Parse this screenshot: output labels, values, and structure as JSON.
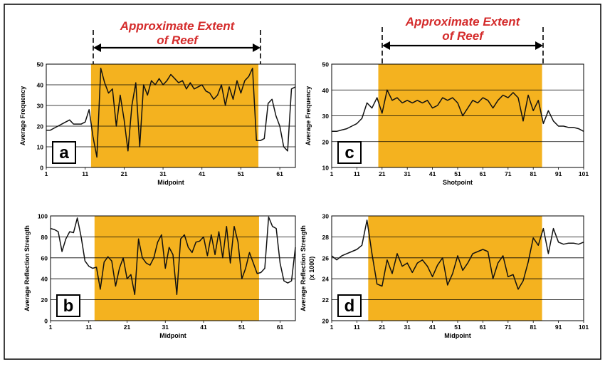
{
  "annotations": {
    "left": {
      "line1": "Approximate Extent",
      "line2": "of Reef"
    },
    "right": {
      "line1": "Approximate Extent",
      "line2": "of Reef"
    }
  },
  "colors": {
    "reef": "#f4b21f",
    "annotation": "#d42b2b",
    "line": "#111111",
    "frame": "#000000"
  },
  "chart_data": [
    {
      "id": "a",
      "type": "line",
      "panel_label": "a",
      "xlabel": "Midpoint",
      "ylabel": "Average Frequency",
      "xlim": [
        1,
        65
      ],
      "ylim": [
        0,
        50
      ],
      "xticks": [
        1,
        11,
        21,
        31,
        41,
        51,
        61
      ],
      "yticks": [
        0,
        10,
        20,
        30,
        40,
        50
      ],
      "reef_extent": [
        12.5,
        55.5
      ],
      "x": [
        1,
        2,
        3,
        4,
        5,
        6,
        7,
        8,
        9,
        10,
        11,
        12,
        13,
        14,
        15,
        16,
        17,
        18,
        19,
        20,
        21,
        22,
        23,
        24,
        25,
        26,
        27,
        28,
        29,
        30,
        31,
        32,
        33,
        34,
        35,
        36,
        37,
        38,
        39,
        40,
        41,
        42,
        43,
        44,
        45,
        46,
        47,
        48,
        49,
        50,
        51,
        52,
        53,
        54,
        55,
        56,
        57,
        58,
        59,
        60,
        61,
        62,
        63,
        64,
        65
      ],
      "y": [
        18,
        18,
        19,
        20,
        21,
        22,
        23,
        21,
        21,
        21,
        22,
        28,
        15,
        5,
        48,
        41,
        36,
        38,
        20,
        35,
        23,
        8,
        30,
        41,
        10,
        40,
        35,
        42,
        40,
        43,
        40,
        42,
        45,
        43,
        41,
        42,
        38,
        41,
        38,
        39,
        40,
        37,
        36,
        33,
        35,
        40,
        30,
        39,
        33,
        42,
        36,
        42,
        44,
        48,
        13,
        13,
        14,
        31,
        33,
        25,
        20,
        10,
        8,
        38,
        39
      ]
    },
    {
      "id": "b",
      "type": "line",
      "panel_label": "b",
      "xlabel": "Midpoint",
      "ylabel": "Average Reflection Strength",
      "xlim": [
        1,
        65
      ],
      "ylim": [
        0,
        100
      ],
      "xticks": [
        1,
        11,
        21,
        31,
        41,
        51,
        61
      ],
      "yticks": [
        0,
        20,
        40,
        60,
        80,
        100
      ],
      "reef_extent": [
        12.5,
        55.5
      ],
      "x": [
        1,
        2,
        3,
        4,
        5,
        6,
        7,
        8,
        9,
        10,
        11,
        12,
        13,
        14,
        15,
        16,
        17,
        18,
        19,
        20,
        21,
        22,
        23,
        24,
        25,
        26,
        27,
        28,
        29,
        30,
        31,
        32,
        33,
        34,
        35,
        36,
        37,
        38,
        39,
        40,
        41,
        42,
        43,
        44,
        45,
        46,
        47,
        48,
        49,
        50,
        51,
        52,
        53,
        54,
        55,
        56,
        57,
        58,
        59,
        60,
        61,
        62,
        63,
        64,
        65
      ],
      "y": [
        88,
        87,
        85,
        66,
        78,
        85,
        84,
        98,
        80,
        57,
        52,
        50,
        51,
        30,
        56,
        61,
        57,
        33,
        50,
        60,
        40,
        44,
        25,
        78,
        60,
        55,
        53,
        60,
        75,
        82,
        50,
        70,
        63,
        25,
        78,
        82,
        70,
        65,
        75,
        76,
        80,
        62,
        82,
        63,
        85,
        60,
        90,
        55,
        90,
        75,
        40,
        50,
        65,
        55,
        45,
        46,
        50,
        99,
        90,
        88,
        55,
        38,
        36,
        38,
        70
      ]
    },
    {
      "id": "c",
      "type": "line",
      "panel_label": "c",
      "xlabel": "Shotpoint",
      "ylabel": "Average Frequency",
      "xlim": [
        1,
        101
      ],
      "ylim": [
        10,
        50
      ],
      "xticks": [
        1,
        11,
        21,
        31,
        41,
        51,
        61,
        71,
        81,
        91,
        101
      ],
      "yticks": [
        10,
        20,
        30,
        40,
        50
      ],
      "reef_extent": [
        19.5,
        84.5
      ],
      "x": [
        1,
        3,
        5,
        7,
        9,
        11,
        13,
        15,
        17,
        19,
        21,
        23,
        25,
        27,
        29,
        31,
        33,
        35,
        37,
        39,
        41,
        43,
        45,
        47,
        49,
        51,
        53,
        55,
        57,
        59,
        61,
        63,
        65,
        67,
        69,
        71,
        73,
        75,
        77,
        79,
        81,
        83,
        85,
        87,
        89,
        91,
        93,
        95,
        97,
        99,
        101
      ],
      "y": [
        24,
        24,
        24.5,
        25,
        26,
        27,
        29,
        35,
        33,
        37,
        31,
        40,
        36,
        37,
        35,
        36,
        35,
        36,
        35,
        36,
        33,
        34,
        37,
        36,
        37,
        35,
        30,
        33,
        36,
        35,
        37,
        36,
        33,
        36,
        38,
        37,
        39,
        37,
        28,
        38,
        32,
        36,
        27,
        32,
        28,
        26,
        26,
        25.5,
        25.5,
        25,
        24
      ]
    },
    {
      "id": "d",
      "type": "line",
      "panel_label": "d",
      "xlabel": "Midpoint",
      "ylabel": "Average Reflection Strength",
      "ylabel2": "(x 1000)",
      "xlim": [
        1,
        101
      ],
      "ylim": [
        20,
        30
      ],
      "xticks": [
        1,
        11,
        21,
        31,
        41,
        51,
        61,
        71,
        81,
        91,
        101
      ],
      "yticks": [
        20,
        22,
        24,
        26,
        28,
        30
      ],
      "reef_extent": [
        15.5,
        84.5
      ],
      "x": [
        1,
        3,
        5,
        7,
        9,
        11,
        13,
        15,
        17,
        19,
        21,
        23,
        25,
        27,
        29,
        31,
        33,
        35,
        37,
        39,
        41,
        43,
        45,
        47,
        49,
        51,
        53,
        55,
        57,
        59,
        61,
        63,
        65,
        67,
        69,
        71,
        73,
        75,
        77,
        79,
        81,
        83,
        85,
        87,
        89,
        91,
        93,
        95,
        97,
        99,
        101
      ],
      "y": [
        26.2,
        25.8,
        26.2,
        26.4,
        26.6,
        26.8,
        27.2,
        29.6,
        26.4,
        23.5,
        23.3,
        25.8,
        24.5,
        26.4,
        25.2,
        25.5,
        24.6,
        25.5,
        25.8,
        25.2,
        24.2,
        25.3,
        26.0,
        23.4,
        24.5,
        26.2,
        24.8,
        25.5,
        26.4,
        26.6,
        26.8,
        26.6,
        24.0,
        25.5,
        26.2,
        24.2,
        24.4,
        23.0,
        23.8,
        25.6,
        27.9,
        27.2,
        28.8,
        26.4,
        28.8,
        27.5,
        27.3,
        27.4,
        27.4,
        27.3,
        27.5
      ]
    }
  ]
}
